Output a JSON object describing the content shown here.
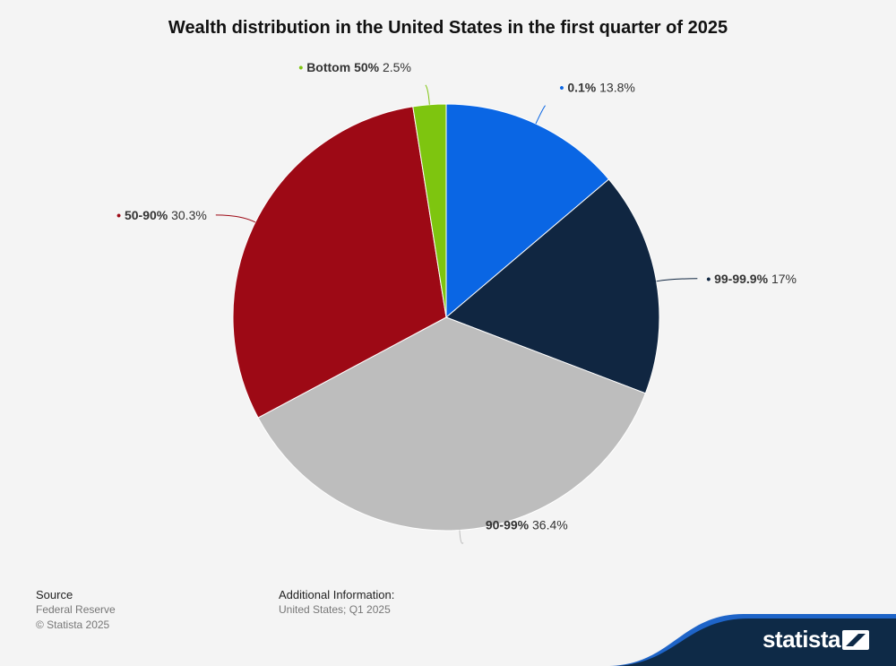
{
  "chart_data": {
    "type": "pie",
    "title": "Wealth distribution in the United States in the first quarter of 2025",
    "slices": [
      {
        "label": "0.1%",
        "value": 13.8,
        "display": "13.8%",
        "color": "#0a66e4"
      },
      {
        "label": "99-99.9%",
        "value": 17,
        "display": "17%",
        "color": "#102641"
      },
      {
        "label": "90-99%",
        "value": 36.4,
        "display": "36.4%",
        "color": "#bdbdbd"
      },
      {
        "label": "50-90%",
        "value": 30.3,
        "display": "30.3%",
        "color": "#9d0915"
      },
      {
        "label": "Bottom 50%",
        "value": 2.5,
        "display": "2.5%",
        "color": "#7ec50f"
      }
    ]
  },
  "footer": {
    "source_heading": "Source",
    "source": "Federal Reserve",
    "copyright": "© Statista 2025",
    "additional_heading": "Additional Information:",
    "additional": "United States; Q1 2025"
  },
  "brand": {
    "name": "statista",
    "colors": {
      "dark": "#0e2a47",
      "accent": "#1e64c8"
    }
  }
}
